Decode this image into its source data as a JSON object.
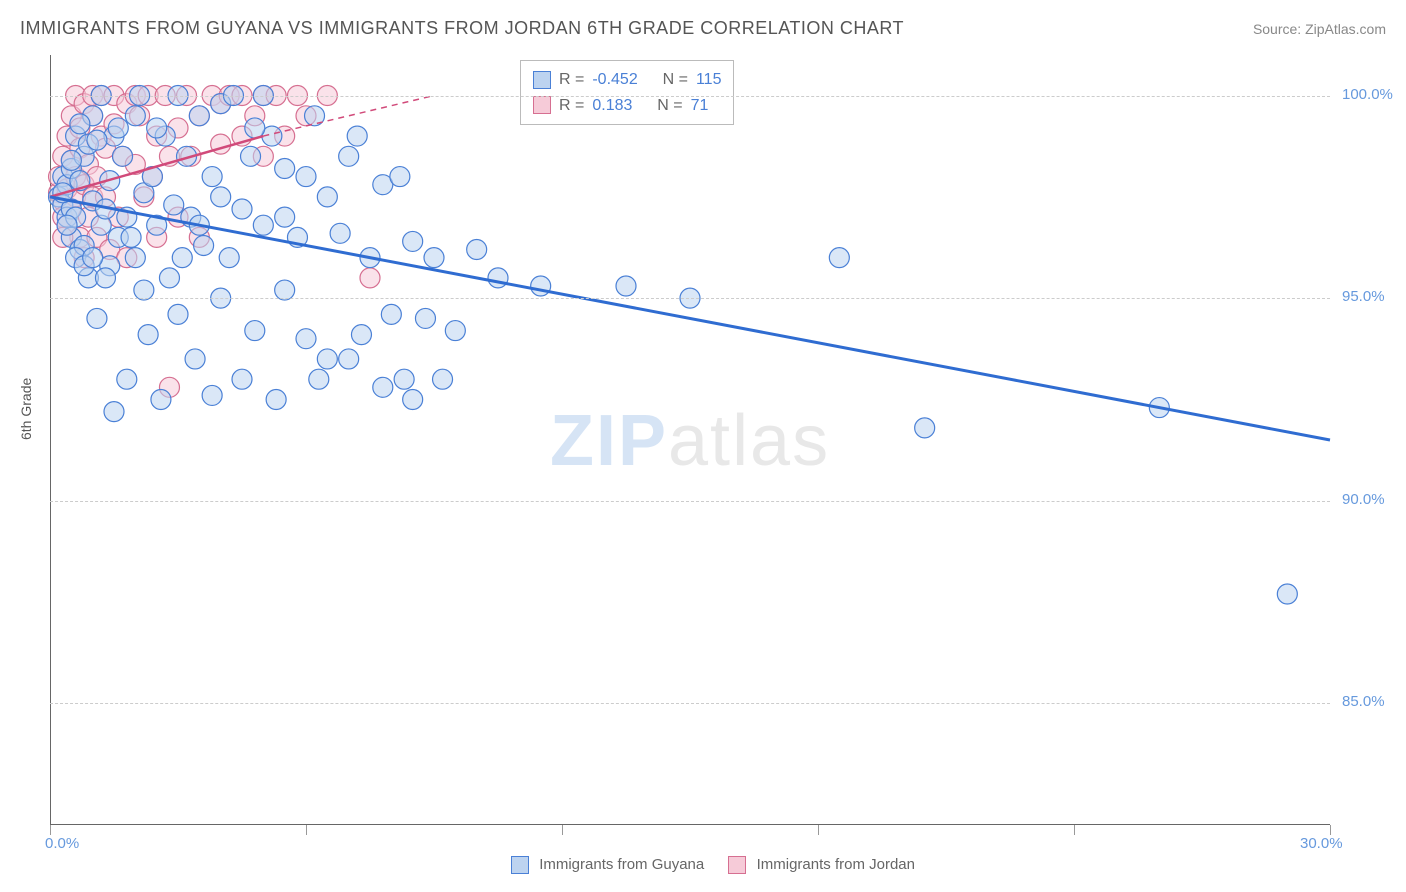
{
  "header": {
    "title": "IMMIGRANTS FROM GUYANA VS IMMIGRANTS FROM JORDAN 6TH GRADE CORRELATION CHART",
    "source": "Source: ZipAtlas.com"
  },
  "axes": {
    "y_label": "6th Grade",
    "x_min": 0.0,
    "x_max": 30.0,
    "y_min": 82.0,
    "y_max": 101.0,
    "x_ticks": [
      0.0,
      30.0
    ],
    "x_tick_labels": [
      "0.0%",
      "30.0%"
    ],
    "y_ticks": [
      85.0,
      90.0,
      95.0,
      100.0
    ],
    "y_tick_labels": [
      "85.0%",
      "90.0%",
      "95.0%",
      "100.0%"
    ],
    "grid_color": "#cccccc"
  },
  "legend_top": {
    "rows": [
      {
        "swatch_fill": "#bcd3f0",
        "swatch_border": "#4a80d6",
        "r_label": "R =",
        "r_value": "-0.452",
        "n_label": "N =",
        "n_value": "115"
      },
      {
        "swatch_fill": "#f6cbd8",
        "swatch_border": "#d66f91",
        "r_label": "R =",
        "r_value": "0.183",
        "n_label": "N =",
        "n_value": "71"
      }
    ]
  },
  "legend_bottom": {
    "items": [
      {
        "swatch_fill": "#bcd3f0",
        "swatch_border": "#4a80d6",
        "label": "Immigrants from Guyana"
      },
      {
        "swatch_fill": "#f6cbd8",
        "swatch_border": "#d66f91",
        "label": "Immigrants from Jordan"
      }
    ]
  },
  "watermark": {
    "bold": "ZIP",
    "rest": "atlas"
  },
  "series": {
    "guyana": {
      "color_fill": "#bcd3f0",
      "color_stroke": "#4a80d6",
      "marker_r": 10,
      "fill_opacity": 0.55,
      "trend": {
        "x1": 0.0,
        "y1": 97.5,
        "x2": 30.0,
        "y2": 91.5,
        "stroke": "#2f6cd1",
        "width": 3
      },
      "points": [
        [
          0.2,
          97.5
        ],
        [
          0.3,
          97.3
        ],
        [
          0.3,
          98.0
        ],
        [
          0.4,
          97.0
        ],
        [
          0.4,
          97.8
        ],
        [
          0.5,
          97.2
        ],
        [
          0.5,
          96.5
        ],
        [
          0.5,
          98.2
        ],
        [
          0.6,
          99.0
        ],
        [
          0.6,
          97.0
        ],
        [
          0.7,
          96.2
        ],
        [
          0.7,
          97.9
        ],
        [
          0.8,
          98.5
        ],
        [
          0.8,
          96.3
        ],
        [
          0.9,
          95.5
        ],
        [
          0.9,
          98.8
        ],
        [
          1.0,
          97.4
        ],
        [
          1.0,
          99.5
        ],
        [
          1.1,
          94.5
        ],
        [
          1.2,
          96.8
        ],
        [
          1.2,
          100.0
        ],
        [
          1.3,
          97.2
        ],
        [
          1.4,
          95.8
        ],
        [
          1.5,
          99.0
        ],
        [
          1.5,
          92.2
        ],
        [
          1.6,
          96.5
        ],
        [
          1.7,
          98.5
        ],
        [
          1.8,
          97.0
        ],
        [
          1.8,
          93.0
        ],
        [
          2.0,
          99.5
        ],
        [
          2.0,
          96.0
        ],
        [
          2.1,
          100.0
        ],
        [
          2.2,
          97.6
        ],
        [
          2.3,
          94.1
        ],
        [
          2.4,
          98.0
        ],
        [
          2.5,
          96.8
        ],
        [
          2.6,
          92.5
        ],
        [
          2.7,
          99.0
        ],
        [
          2.8,
          95.5
        ],
        [
          2.9,
          97.3
        ],
        [
          3.0,
          100.0
        ],
        [
          3.1,
          96.0
        ],
        [
          3.2,
          98.5
        ],
        [
          3.3,
          97.0
        ],
        [
          3.4,
          93.5
        ],
        [
          3.5,
          99.5
        ],
        [
          3.6,
          96.3
        ],
        [
          3.8,
          98.0
        ],
        [
          3.8,
          92.6
        ],
        [
          4.0,
          97.5
        ],
        [
          4.0,
          99.8
        ],
        [
          4.2,
          96.0
        ],
        [
          4.3,
          100.0
        ],
        [
          4.5,
          97.2
        ],
        [
          4.5,
          93.0
        ],
        [
          4.7,
          98.5
        ],
        [
          4.8,
          94.2
        ],
        [
          5.0,
          96.8
        ],
        [
          5.0,
          100.0
        ],
        [
          5.2,
          99.0
        ],
        [
          5.3,
          92.5
        ],
        [
          5.5,
          97.0
        ],
        [
          5.5,
          98.2
        ],
        [
          5.8,
          96.5
        ],
        [
          6.0,
          98.0
        ],
        [
          6.0,
          94.0
        ],
        [
          6.2,
          99.5
        ],
        [
          6.3,
          93.0
        ],
        [
          6.5,
          97.5
        ],
        [
          6.8,
          96.6
        ],
        [
          7.0,
          98.5
        ],
        [
          7.0,
          93.5
        ],
        [
          7.2,
          99.0
        ],
        [
          7.3,
          94.1
        ],
        [
          7.5,
          96.0
        ],
        [
          7.8,
          97.8
        ],
        [
          7.8,
          92.8
        ],
        [
          8.0,
          94.6
        ],
        [
          8.2,
          98.0
        ],
        [
          8.3,
          93.0
        ],
        [
          8.5,
          96.4
        ],
        [
          8.5,
          92.5
        ],
        [
          8.8,
          94.5
        ],
        [
          9.0,
          96.0
        ],
        [
          9.2,
          93.0
        ],
        [
          9.5,
          94.2
        ],
        [
          10.0,
          96.2
        ],
        [
          10.5,
          95.5
        ],
        [
          11.5,
          95.3
        ],
        [
          13.5,
          95.3
        ],
        [
          15.0,
          95.0
        ],
        [
          18.5,
          96.0
        ],
        [
          20.5,
          91.8
        ],
        [
          26.0,
          92.3
        ],
        [
          29.0,
          87.7
        ],
        [
          0.3,
          97.6
        ],
        [
          0.4,
          96.8
        ],
        [
          0.5,
          98.4
        ],
        [
          0.6,
          96.0
        ],
        [
          0.7,
          99.3
        ],
        [
          0.8,
          95.8
        ],
        [
          1.0,
          96.0
        ],
        [
          1.1,
          98.9
        ],
        [
          1.3,
          95.5
        ],
        [
          1.4,
          97.9
        ],
        [
          1.6,
          99.2
        ],
        [
          1.9,
          96.5
        ],
        [
          2.2,
          95.2
        ],
        [
          2.5,
          99.2
        ],
        [
          3.0,
          94.6
        ],
        [
          3.5,
          96.8
        ],
        [
          4.0,
          95.0
        ],
        [
          4.8,
          99.2
        ],
        [
          5.5,
          95.2
        ],
        [
          6.5,
          93.5
        ]
      ]
    },
    "jordan": {
      "color_fill": "#f6cbd8",
      "color_stroke": "#d66f91",
      "marker_r": 10,
      "fill_opacity": 0.55,
      "trend_solid": {
        "x1": 0.0,
        "y1": 97.5,
        "x2": 5.0,
        "y2": 99.0,
        "stroke": "#d14a7a",
        "width": 2.5
      },
      "trend_dash": {
        "x1": 5.0,
        "y1": 99.0,
        "x2": 9.0,
        "y2": 100.0,
        "stroke": "#d14a7a",
        "width": 1.5,
        "dash": "6,5"
      },
      "points": [
        [
          0.2,
          97.6
        ],
        [
          0.2,
          98.0
        ],
        [
          0.3,
          97.4
        ],
        [
          0.3,
          98.5
        ],
        [
          0.3,
          97.0
        ],
        [
          0.4,
          99.0
        ],
        [
          0.4,
          97.7
        ],
        [
          0.4,
          96.8
        ],
        [
          0.5,
          98.4
        ],
        [
          0.5,
          99.5
        ],
        [
          0.5,
          97.2
        ],
        [
          0.6,
          98.0
        ],
        [
          0.6,
          100.0
        ],
        [
          0.6,
          97.5
        ],
        [
          0.7,
          99.2
        ],
        [
          0.7,
          96.5
        ],
        [
          0.7,
          98.7
        ],
        [
          0.8,
          97.8
        ],
        [
          0.8,
          99.8
        ],
        [
          0.8,
          96.0
        ],
        [
          0.9,
          98.3
        ],
        [
          0.9,
          97.0
        ],
        [
          1.0,
          99.5
        ],
        [
          1.0,
          100.0
        ],
        [
          1.0,
          97.5
        ],
        [
          1.1,
          98.0
        ],
        [
          1.1,
          96.5
        ],
        [
          1.2,
          99.0
        ],
        [
          1.2,
          100.0
        ],
        [
          1.3,
          97.5
        ],
        [
          1.3,
          98.7
        ],
        [
          1.4,
          96.2
        ],
        [
          1.5,
          99.3
        ],
        [
          1.5,
          100.0
        ],
        [
          1.6,
          97.0
        ],
        [
          1.7,
          98.5
        ],
        [
          1.8,
          99.8
        ],
        [
          1.8,
          96.0
        ],
        [
          2.0,
          100.0
        ],
        [
          2.0,
          98.3
        ],
        [
          2.1,
          99.5
        ],
        [
          2.2,
          97.5
        ],
        [
          2.3,
          100.0
        ],
        [
          2.4,
          98.0
        ],
        [
          2.5,
          99.0
        ],
        [
          2.5,
          96.5
        ],
        [
          2.7,
          100.0
        ],
        [
          2.8,
          98.5
        ],
        [
          2.8,
          92.8
        ],
        [
          3.0,
          99.2
        ],
        [
          3.0,
          97.0
        ],
        [
          3.2,
          100.0
        ],
        [
          3.3,
          98.5
        ],
        [
          3.5,
          99.5
        ],
        [
          3.5,
          96.5
        ],
        [
          3.8,
          100.0
        ],
        [
          4.0,
          98.8
        ],
        [
          4.0,
          99.8
        ],
        [
          4.2,
          100.0
        ],
        [
          4.5,
          99.0
        ],
        [
          4.5,
          100.0
        ],
        [
          4.8,
          99.5
        ],
        [
          5.0,
          100.0
        ],
        [
          5.0,
          98.5
        ],
        [
          5.3,
          100.0
        ],
        [
          5.5,
          99.0
        ],
        [
          5.8,
          100.0
        ],
        [
          6.0,
          99.5
        ],
        [
          6.5,
          100.0
        ],
        [
          7.5,
          95.5
        ],
        [
          0.3,
          96.5
        ]
      ]
    }
  }
}
